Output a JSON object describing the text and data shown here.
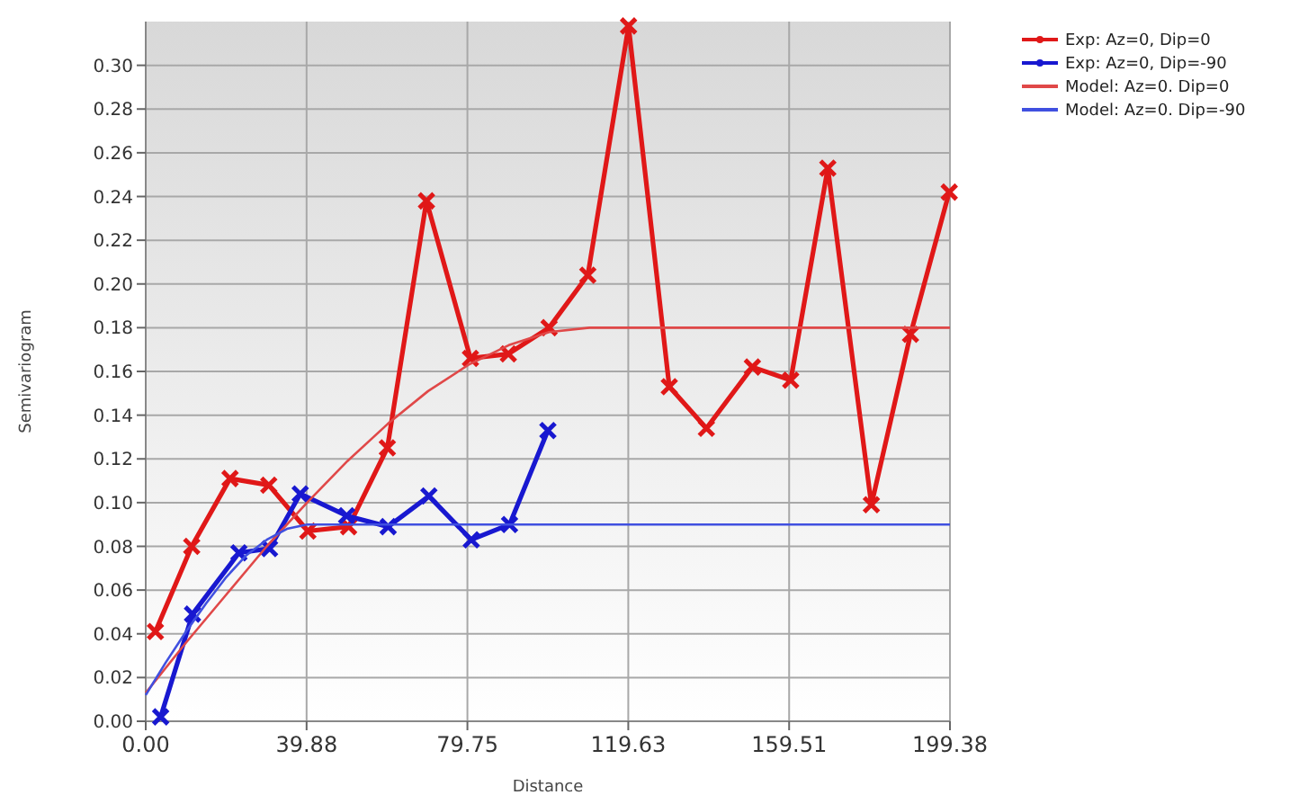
{
  "chart_data": {
    "type": "line",
    "xlabel": "Distance",
    "ylabel": "Semivariogram",
    "xlim": [
      0,
      199.38
    ],
    "ylim": [
      0,
      0.32
    ],
    "xticks": [
      {
        "value": 0,
        "label": "0.00"
      },
      39.88,
      79.75,
      119.63,
      159.51,
      199.38
    ],
    "yticks": [
      {
        "value": 0,
        "label": "0.00"
      },
      0.02,
      0.04,
      0.06,
      0.08,
      {
        "value": 0.1,
        "label": "0.10"
      },
      0.12,
      0.14,
      0.16,
      0.18,
      {
        "value": 0.2,
        "label": "0.20"
      },
      0.22,
      0.24,
      0.26,
      0.28,
      {
        "value": 0.3,
        "label": "0.30"
      }
    ],
    "grid": true,
    "legend": "top right",
    "series": [
      {
        "name": "Exp: Az=0, Dip=0",
        "color": "#e01818",
        "marker": "cross",
        "x": [
          2.4,
          11.4,
          20.9,
          30.5,
          40.2,
          50.3,
          59.9,
          69.6,
          80.5,
          89.9,
          100.0,
          109.6,
          119.7,
          129.8,
          139.0,
          150.4,
          159.9,
          169.1,
          179.9,
          189.6,
          199.2
        ],
        "values": [
          0.041,
          0.08,
          0.111,
          0.108,
          0.087,
          0.089,
          0.125,
          0.238,
          0.166,
          0.168,
          0.18,
          0.204,
          0.318,
          0.153,
          0.134,
          0.162,
          0.156,
          0.253,
          0.099,
          0.177,
          0.242
        ]
      },
      {
        "name": "Exp: Az=0, Dip=-90",
        "color": "#1818d0",
        "marker": "cross",
        "x": [
          3.7,
          11.6,
          23.1,
          30.7,
          38.3,
          49.8,
          60.1,
          70.2,
          80.7,
          90.2,
          99.7
        ],
        "values": [
          0.002,
          0.049,
          0.077,
          0.079,
          0.104,
          0.094,
          0.089,
          0.103,
          0.083,
          0.09,
          0.133
        ]
      },
      {
        "name": "Model: Az=0. Dip=0",
        "color": "#e04848",
        "marker": "none",
        "x": [
          0,
          10,
          20,
          30,
          40,
          50,
          60,
          70,
          80,
          90,
          100,
          110,
          199.38
        ],
        "values": [
          0.013,
          0.036,
          0.058,
          0.08,
          0.1,
          0.119,
          0.136,
          0.151,
          0.163,
          0.172,
          0.178,
          0.18,
          0.18
        ]
      },
      {
        "name": "Model: Az=0. Dip=-90",
        "color": "#4050e0",
        "marker": "none",
        "x": [
          0,
          5,
          10,
          15,
          20,
          25,
          30,
          35,
          40,
          199.38
        ],
        "values": [
          0.012,
          0.027,
          0.041,
          0.054,
          0.066,
          0.076,
          0.083,
          0.088,
          0.09,
          0.09
        ]
      }
    ]
  }
}
